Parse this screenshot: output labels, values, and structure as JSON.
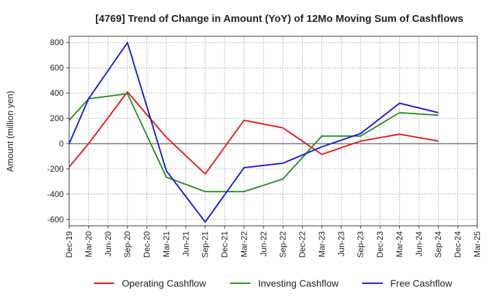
{
  "chart_data": {
    "type": "line",
    "title": "[4769]  Trend of Change in Amount (YoY) of 12Mo Moving Sum of Cashflows",
    "xlabel": "",
    "ylabel": "Amount (million yen)",
    "ylim": [
      -650,
      850
    ],
    "yticks": [
      800,
      600,
      400,
      200,
      0,
      -200,
      -400,
      -600
    ],
    "ytick_labels": [
      "800",
      "600",
      "400",
      "200",
      "0",
      "-200",
      "-400",
      "-600"
    ],
    "categories": [
      "Dec-19",
      "Mar-20",
      "Jun-20",
      "Sep-20",
      "Dec-20",
      "Mar-21",
      "Jun-21",
      "Sep-21",
      "Dec-21",
      "Mar-22",
      "Jun-22",
      "Sep-22",
      "Dec-22",
      "Mar-23",
      "Jun-23",
      "Sep-23",
      "Dec-23",
      "Mar-24",
      "Jun-24",
      "Sep-24",
      "Dec-24",
      "Mar-25"
    ],
    "grid": true,
    "legend_position": "bottom",
    "series": [
      {
        "name": "Operating Cashflow",
        "color": "#e31a1c",
        "values": [
          -185,
          0,
          null,
          410,
          null,
          50,
          null,
          -240,
          null,
          185,
          null,
          125,
          null,
          -85,
          null,
          20,
          null,
          75,
          null,
          20,
          null,
          null
        ]
      },
      {
        "name": "Investing Cashflow",
        "color": "#2e8b2e",
        "values": [
          185,
          355,
          null,
          395,
          null,
          -265,
          null,
          -380,
          null,
          -380,
          null,
          -280,
          null,
          60,
          null,
          60,
          null,
          245,
          null,
          225,
          null,
          null
        ]
      },
      {
        "name": "Free Cashflow",
        "color": "#1a1adb",
        "values": [
          0,
          355,
          null,
          800,
          null,
          -215,
          null,
          -620,
          null,
          -190,
          null,
          -155,
          null,
          -25,
          null,
          80,
          null,
          320,
          null,
          245,
          null,
          null
        ]
      }
    ]
  }
}
